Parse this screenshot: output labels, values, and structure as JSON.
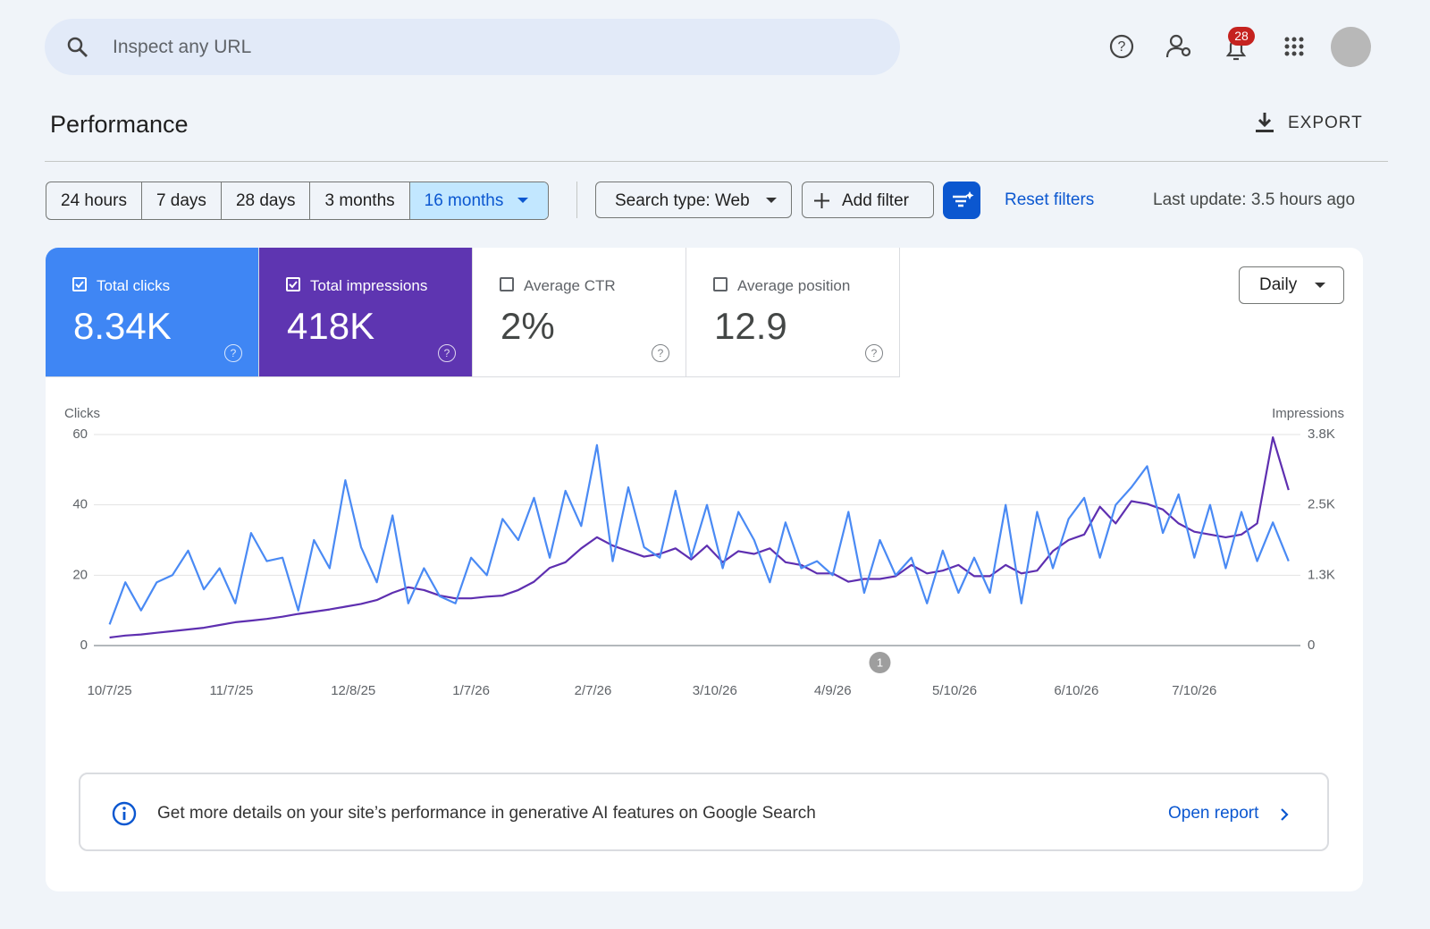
{
  "header": {
    "search_placeholder": "Inspect any URL",
    "notifications": 28
  },
  "title": "Performance",
  "export": "EXPORT",
  "filters": {
    "date_ranges": [
      "24 hours",
      "7 days",
      "28 days",
      "3 months",
      "16 months"
    ],
    "search_type": "Search type: Web",
    "add_filter": "Add filter",
    "reset": "Reset filters",
    "last_update": "Last update: 3.5 hours ago"
  },
  "metrics": [
    {
      "label": "Total clicks",
      "value": "8.34K"
    },
    {
      "label": "Total impressions",
      "value": "418K"
    },
    {
      "label": "Average CTR",
      "value": "2%"
    },
    {
      "label": "Average position",
      "value": "12.9"
    }
  ],
  "granularity": "Daily",
  "chart_data": {
    "type": "line",
    "y_label": "Clicks",
    "y2_label": "Impressions",
    "x": [
      0,
      4,
      8,
      12,
      16,
      20,
      24,
      28,
      32,
      36,
      40,
      44,
      48,
      52,
      56,
      60,
      64,
      68,
      72,
      76,
      80,
      84,
      88,
      92,
      96,
      100,
      104,
      108,
      112,
      116,
      120,
      124,
      128,
      132,
      136,
      140,
      144,
      148,
      152,
      156,
      160,
      164,
      168,
      172,
      176,
      180,
      184,
      188,
      192,
      196,
      200,
      204,
      208,
      212,
      216,
      220,
      224,
      228,
      232,
      236,
      240,
      244,
      248,
      252,
      256,
      260,
      264,
      268,
      272,
      276,
      280,
      284,
      288,
      292,
      296,
      300
    ],
    "xlim": [
      -4,
      303
    ],
    "xticks": [
      {
        "value": 0,
        "label": "10/7/25"
      },
      {
        "value": 31,
        "label": "11/7/25"
      },
      {
        "value": 62,
        "label": "12/8/25"
      },
      {
        "value": 92,
        "label": "1/7/26"
      },
      {
        "value": 123,
        "label": "2/7/26"
      },
      {
        "value": 154,
        "label": "3/10/26"
      },
      {
        "value": 184,
        "label": "4/9/26"
      },
      {
        "value": 215,
        "label": "5/10/26"
      },
      {
        "value": 246,
        "label": "6/10/26"
      },
      {
        "value": 276,
        "label": "7/10/26"
      }
    ],
    "series": [
      {
        "color": "#4a8af4",
        "values": [
          6,
          18,
          10,
          18,
          20,
          27,
          16,
          22,
          12,
          32,
          24,
          25,
          10,
          30,
          22,
          47,
          28,
          18,
          37,
          12,
          22,
          14,
          12,
          25,
          20,
          36,
          30,
          42,
          25,
          44,
          34,
          57,
          24,
          45,
          28,
          25,
          44,
          25,
          40,
          22,
          38,
          30,
          18,
          35,
          22,
          24,
          20,
          38,
          15,
          30,
          20,
          25,
          12,
          27,
          15,
          25,
          15,
          40,
          12,
          38,
          22,
          36,
          42,
          25,
          40,
          45,
          51,
          32,
          43,
          25,
          40,
          22,
          38,
          24,
          35,
          24
        ]
      },
      {
        "color": "#5e2fb0",
        "axis": "y2",
        "values": [
          145,
          180,
          200,
          230,
          260,
          290,
          320,
          370,
          420,
          450,
          480,
          520,
          570,
          610,
          650,
          700,
          750,
          820,
          950,
          1050,
          1000,
          900,
          850,
          850,
          880,
          900,
          1000,
          1150,
          1400,
          1500,
          1750,
          1950,
          1800,
          1700,
          1600,
          1650,
          1750,
          1550,
          1800,
          1500,
          1700,
          1650,
          1750,
          1500,
          1450,
          1300,
          1300,
          1150,
          1200,
          1200,
          1250,
          1450,
          1300,
          1350,
          1450,
          1250,
          1250,
          1450,
          1300,
          1350,
          1700,
          1900,
          2000,
          2500,
          2200,
          2600,
          2550,
          2450,
          2200,
          2050,
          2000,
          1950,
          2000,
          2200,
          3750,
          2800
        ]
      }
    ],
    "ylim": [
      0,
      60
    ],
    "yticks": [
      0,
      20,
      40,
      60
    ],
    "y2lim": [
      0,
      3800
    ],
    "y2ticks": [
      0,
      {
        "value": 1267,
        "label": "1.3K"
      },
      {
        "value": 2533,
        "label": "2.5K"
      },
      {
        "value": 3800,
        "label": "3.8K"
      }
    ],
    "grid": true,
    "annotations": [
      {
        "x": 196,
        "text": "1"
      }
    ]
  },
  "banner": {
    "text": "Get more details on your site’s performance in generative AI features on Google Search",
    "link": "Open report"
  }
}
